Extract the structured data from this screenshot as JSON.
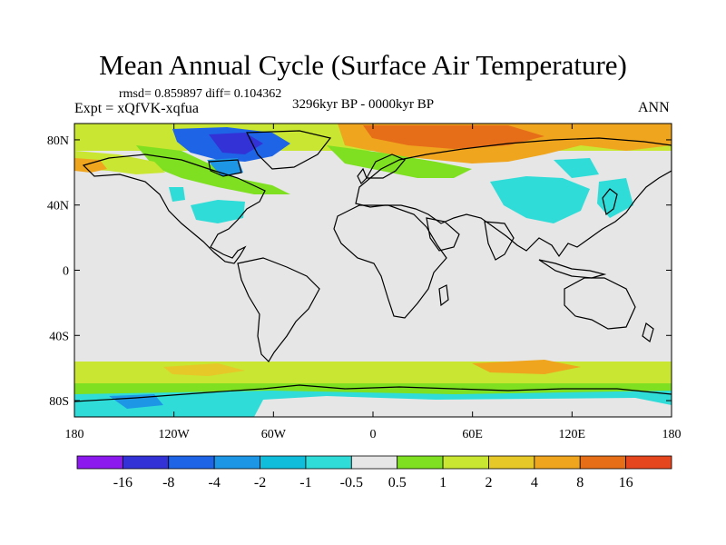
{
  "title": "Mean Annual Cycle (Surface Air Temperature)",
  "stats": "rmsd= 0.859897 diff= 0.104362",
  "period": "3296kyr BP - 0000kyr BP",
  "experiment": "Expt = xQfVK-xqfua",
  "season": "ANN",
  "axes": {
    "lat_ticks": [
      {
        "label": "80N",
        "lat": 80
      },
      {
        "label": "40N",
        "lat": 40
      },
      {
        "label": "0",
        "lat": 0
      },
      {
        "label": "40S",
        "lat": -40
      },
      {
        "label": "80S",
        "lat": -80
      }
    ],
    "lon_ticks": [
      {
        "label": "180",
        "lon": -180
      },
      {
        "label": "120W",
        "lon": -120
      },
      {
        "label": "60W",
        "lon": -60
      },
      {
        "label": "0",
        "lon": 0
      },
      {
        "label": "60E",
        "lon": 60
      },
      {
        "label": "120E",
        "lon": 120
      },
      {
        "label": "180",
        "lon": 180
      }
    ],
    "lon_range": [
      -180,
      180
    ],
    "lat_range": [
      -90,
      90
    ]
  },
  "colorbar": {
    "colors": [
      "#8c1aee",
      "#3232d6",
      "#1e64e6",
      "#1e96e6",
      "#10bedc",
      "#30dcd8",
      "#e6e6e6",
      "#7ee020",
      "#c8e632",
      "#e6c828",
      "#f0a51e",
      "#e66e19",
      "#e6461e"
    ],
    "labels": [
      "-16",
      "-8",
      "-4",
      "-2",
      "-1",
      "-0.5",
      "0.5",
      "1",
      "2",
      "4",
      "8",
      "16"
    ]
  }
}
